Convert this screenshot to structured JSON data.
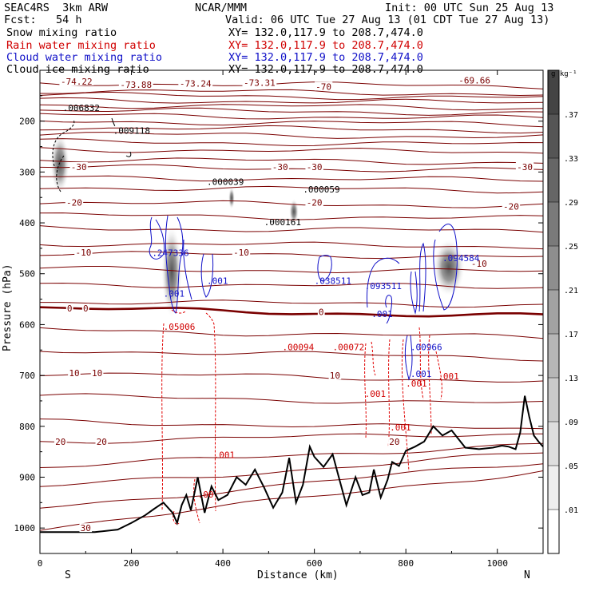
{
  "header": {
    "model": "SEAC4RS  3km ARW",
    "org": "NCAR/MMM",
    "init": "Init: 00 UTC Sun 25 Aug 13",
    "fcst": "Fcst:   54 h",
    "valid": "Valid: 06 UTC Tue 27 Aug 13 (01 CDT Tue 27 Aug 13)",
    "fields": [
      {
        "name": "Snow mixing ratio",
        "xy": "XY= 132.0,117.9 to 208.7,474.0",
        "color": "#000000"
      },
      {
        "name": "Rain water mixing ratio",
        "xy": "XY= 132.0,117.9 to 208.7,474.0",
        "color": "#d00000"
      },
      {
        "name": "Cloud water mixing ratio",
        "xy": "XY= 132.0,117.9 to 208.7,474.0",
        "color": "#1010c8"
      },
      {
        "name": "Cloud ice mixing ratio",
        "xy": "XY= 132.0,117.9 to 208.7,474.0",
        "color": "#000000"
      }
    ]
  },
  "chart_data": {
    "type": "contour",
    "ylabel": "Pressure (hPa)",
    "xlabel": "Distance (km)",
    "xlim": [
      0,
      1100
    ],
    "ylim": [
      1050,
      100
    ],
    "x_ticks": [
      0,
      200,
      400,
      600,
      800,
      1000
    ],
    "y_ticks": [
      200,
      300,
      400,
      500,
      600,
      700,
      800,
      900,
      1000
    ],
    "x_end_labels": {
      "left": "S",
      "right": "N"
    },
    "colorbar": {
      "unit": "g kg⁻¹",
      "labels": [
        ".37",
        ".33",
        ".29",
        ".25",
        ".21",
        ".17",
        ".13",
        ".09",
        ".05",
        ".01"
      ],
      "colors": [
        "#444444",
        "#555555",
        "#666666",
        "#7a7a7a",
        "#8e8e8e",
        "#a2a2a2",
        "#b6b6b6",
        "#cacaca",
        "#dedede",
        "#eeeeee",
        "#ffffff"
      ]
    },
    "temperature_isotherms": {
      "color": "#7a0000",
      "contours": [
        {
          "label": "-74.22",
          "x": 80,
          "p": 122
        },
        {
          "label": "-73.88",
          "x": 210,
          "p": 128
        },
        {
          "label": "-73.24",
          "x": 340,
          "p": 126
        },
        {
          "label": "-73.31",
          "x": 480,
          "p": 124
        },
        {
          "label": "-69.66",
          "x": 950,
          "p": 120
        },
        {
          "label": "-70",
          "x": 620,
          "p": 132
        },
        {
          "label": "-30",
          "x": 85,
          "p": 290
        },
        {
          "label": "-30",
          "x": 525,
          "p": 290
        },
        {
          "label": "-30",
          "x": 600,
          "p": 290
        },
        {
          "label": "-30",
          "x": 1060,
          "p": 290
        },
        {
          "label": "-20",
          "x": 75,
          "p": 360
        },
        {
          "label": "-20",
          "x": 600,
          "p": 360
        },
        {
          "label": "-20",
          "x": 1030,
          "p": 368
        },
        {
          "label": "-10",
          "x": 95,
          "p": 458
        },
        {
          "label": "-10",
          "x": 440,
          "p": 458
        },
        {
          "label": "-10",
          "x": 960,
          "p": 480
        },
        {
          "label": "0",
          "x": 65,
          "p": 568
        },
        {
          "label": "0",
          "x": 100,
          "p": 568
        },
        {
          "label": "0",
          "x": 615,
          "p": 575
        },
        {
          "label": "10",
          "x": 75,
          "p": 695
        },
        {
          "label": "10",
          "x": 125,
          "p": 695
        },
        {
          "label": "10",
          "x": 645,
          "p": 700
        },
        {
          "label": "20",
          "x": 45,
          "p": 830
        },
        {
          "label": "20",
          "x": 135,
          "p": 830
        },
        {
          "label": "20",
          "x": 775,
          "p": 830
        },
        {
          "label": "30",
          "x": 100,
          "p": 1000
        }
      ]
    },
    "maxima": [
      {
        "field": "cloud ice",
        "color": "#000000",
        "label": ".006832",
        "x": 50,
        "p": 180
      },
      {
        "field": "cloud ice",
        "color": "#000000",
        "label": ".009118",
        "x": 160,
        "p": 225
      },
      {
        "field": "cloud ice",
        "color": "#000000",
        "label": ".000039",
        "x": 365,
        "p": 325
      },
      {
        "field": "cloud ice",
        "color": "#000000",
        "label": ".000059",
        "x": 575,
        "p": 340
      },
      {
        "field": "cloud ice",
        "color": "#000000",
        "label": ".000161",
        "x": 490,
        "p": 405
      },
      {
        "field": "cloud water",
        "color": "#1010c8",
        "label": ".247336",
        "x": 245,
        "p": 465
      },
      {
        "field": "cloud water",
        "color": "#1010c8",
        "label": ".001",
        "x": 270,
        "p": 545
      },
      {
        "field": "cloud water",
        "color": "#1010c8",
        "label": ".001",
        "x": 365,
        "p": 520
      },
      {
        "field": "cloud water",
        "color": "#1010c8",
        "label": ".038511",
        "x": 600,
        "p": 520
      },
      {
        "field": "cloud water",
        "color": "#1010c8",
        "label": ".093511",
        "x": 710,
        "p": 530
      },
      {
        "field": "cloud water",
        "color": "#1010c8",
        "label": ".001",
        "x": 725,
        "p": 585
      },
      {
        "field": "cloud water",
        "color": "#1010c8",
        "label": ".094584",
        "x": 880,
        "p": 475
      },
      {
        "field": "cloud water",
        "color": "#1010c8",
        "label": ".00966",
        "x": 810,
        "p": 650
      },
      {
        "field": "cloud water",
        "color": "#1010c8",
        "label": ".001",
        "x": 810,
        "p": 703
      },
      {
        "field": "rain water",
        "color": "#d00000",
        "label": ".05006",
        "x": 270,
        "p": 610
      },
      {
        "field": "rain water",
        "color": "#d00000",
        "label": ".00094",
        "x": 530,
        "p": 650
      },
      {
        "field": "rain water",
        "color": "#d00000",
        "label": ".00072",
        "x": 640,
        "p": 650
      },
      {
        "field": "rain water",
        "color": "#d00000",
        "label": ".001",
        "x": 710,
        "p": 742
      },
      {
        "field": "rain water",
        "color": "#d00000",
        "label": ".001",
        "x": 765,
        "p": 808
      },
      {
        "field": "rain water",
        "color": "#d00000",
        "label": ".001",
        "x": 800,
        "p": 722
      },
      {
        "field": "rain water",
        "color": "#d00000",
        "label": ".001",
        "x": 870,
        "p": 708
      },
      {
        "field": "rain water",
        "color": "#d00000",
        "label": ".001",
        "x": 380,
        "p": 862
      },
      {
        "field": "rain water",
        "color": "#d00000",
        "label": ".00",
        "x": 345,
        "p": 940
      }
    ],
    "terrain": {
      "x": [
        0,
        60,
        120,
        170,
        200,
        230,
        250,
        270,
        290,
        300,
        310,
        320,
        330,
        345,
        360,
        375,
        390,
        410,
        430,
        450,
        470,
        490,
        510,
        530,
        545,
        560,
        575,
        590,
        600,
        620,
        640,
        655,
        670,
        690,
        705,
        720,
        730,
        745,
        760,
        770,
        785,
        800,
        820,
        840,
        860,
        880,
        900,
        930,
        960,
        990,
        1010,
        1025,
        1040,
        1050,
        1060,
        1070,
        1080,
        1090,
        1100
      ],
      "p": [
        1008,
        1008,
        1008,
        1003,
        990,
        975,
        962,
        950,
        970,
        990,
        955,
        935,
        965,
        900,
        970,
        918,
        945,
        935,
        900,
        915,
        885,
        920,
        960,
        930,
        862,
        950,
        915,
        840,
        860,
        880,
        855,
        905,
        955,
        900,
        935,
        930,
        885,
        940,
        905,
        870,
        878,
        848,
        840,
        830,
        800,
        818,
        808,
        842,
        845,
        842,
        838,
        840,
        845,
        812,
        740,
        782,
        818,
        830,
        840
      ]
    }
  }
}
